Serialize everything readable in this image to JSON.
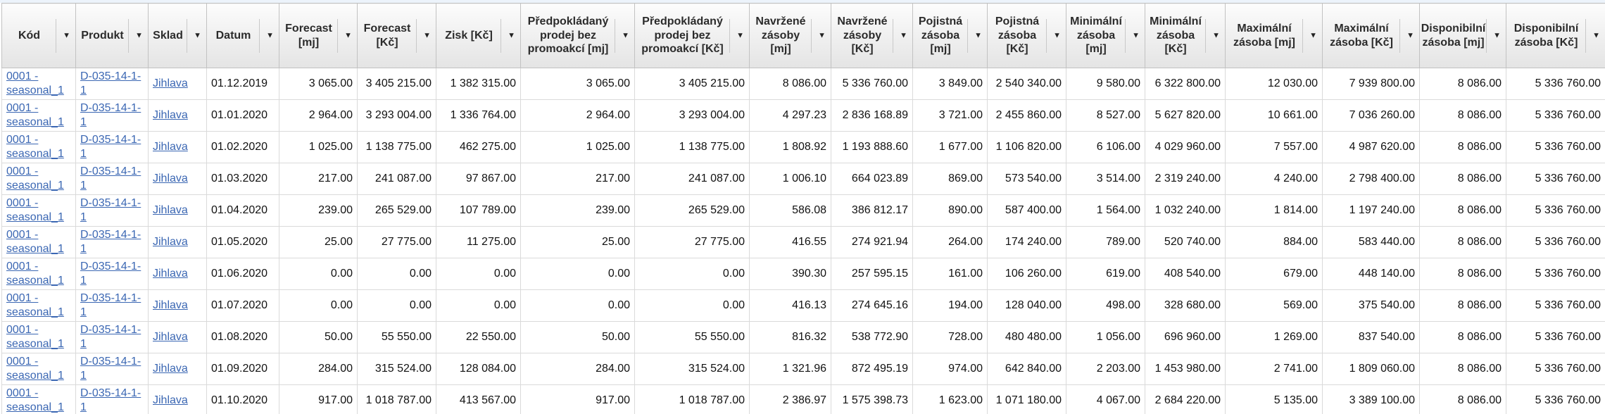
{
  "icons": {
    "filter_dropdown": "▼"
  },
  "colors": {
    "link": "#3b67b3",
    "header_text": "#2b2b2b",
    "top_strip": "#ecf3fb"
  },
  "grid": {
    "columns": [
      {
        "key": "kod",
        "label": "Kód",
        "type": "link"
      },
      {
        "key": "produkt",
        "label": "Produkt",
        "type": "link"
      },
      {
        "key": "sklad",
        "label": "Sklad",
        "type": "link"
      },
      {
        "key": "datum",
        "label": "Datum",
        "type": "text"
      },
      {
        "key": "forecast_mj",
        "label": "Forecast [mj]",
        "type": "number"
      },
      {
        "key": "forecast_kc",
        "label": "Forecast [Kč]",
        "type": "number"
      },
      {
        "key": "zisk_kc",
        "label": "Zisk [Kč]",
        "type": "number"
      },
      {
        "key": "predpokladany_prodej_mj",
        "label": "Předpokládaný prodej bez promoakcí [mj]",
        "type": "number"
      },
      {
        "key": "predpokladany_prodej_kc",
        "label": "Předpokládaný prodej bez promoakcí [Kč]",
        "type": "number"
      },
      {
        "key": "navrzene_zasoby_mj",
        "label": "Navržené zásoby [mj]",
        "type": "number"
      },
      {
        "key": "navrzene_zasoby_kc",
        "label": "Navržené zásoby [Kč]",
        "type": "number"
      },
      {
        "key": "pojistna_zasoba_mj",
        "label": "Pojistná zásoba [mj]",
        "type": "number"
      },
      {
        "key": "pojistna_zasoba_kc",
        "label": "Pojistná zásoba [Kč]",
        "type": "number"
      },
      {
        "key": "minimalni_zasoba_mj",
        "label": "Minimální zásoba [mj]",
        "type": "number"
      },
      {
        "key": "minimalni_zasoba_kc",
        "label": "Minimální zásoba [Kč]",
        "type": "number"
      },
      {
        "key": "maximalni_zasoba_mj",
        "label": "Maximální zásoba [mj]",
        "type": "number"
      },
      {
        "key": "maximalni_zasoba_kc",
        "label": "Maximální zásoba [Kč]",
        "type": "number"
      },
      {
        "key": "disponibilni_zasoba_mj",
        "label": "Disponibilní zásoba [mj]",
        "type": "number"
      },
      {
        "key": "disponibilni_zasoba_kc",
        "label": "Disponibilní zásoba [Kč]",
        "type": "number"
      }
    ],
    "rows": [
      {
        "kod": "0001 - seasonal_1",
        "produkt": "D-035-14-1-1",
        "sklad": "Jihlava",
        "datum": "01.12.2019",
        "forecast_mj": "3 065.00",
        "forecast_kc": "3 405 215.00",
        "zisk_kc": "1 382 315.00",
        "predpokladany_prodej_mj": "3 065.00",
        "predpokladany_prodej_kc": "3 405 215.00",
        "navrzene_zasoby_mj": "8 086.00",
        "navrzene_zasoby_kc": "5 336 760.00",
        "pojistna_zasoba_mj": "3 849.00",
        "pojistna_zasoba_kc": "2 540 340.00",
        "minimalni_zasoba_mj": "9 580.00",
        "minimalni_zasoba_kc": "6 322 800.00",
        "maximalni_zasoba_mj": "12 030.00",
        "maximalni_zasoba_kc": "7 939 800.00",
        "disponibilni_zasoba_mj": "8 086.00",
        "disponibilni_zasoba_kc": "5 336 760.00"
      },
      {
        "kod": "0001 - seasonal_1",
        "produkt": "D-035-14-1-1",
        "sklad": "Jihlava",
        "datum": "01.01.2020",
        "forecast_mj": "2 964.00",
        "forecast_kc": "3 293 004.00",
        "zisk_kc": "1 336 764.00",
        "predpokladany_prodej_mj": "2 964.00",
        "predpokladany_prodej_kc": "3 293 004.00",
        "navrzene_zasoby_mj": "4 297.23",
        "navrzene_zasoby_kc": "2 836 168.89",
        "pojistna_zasoba_mj": "3 721.00",
        "pojistna_zasoba_kc": "2 455 860.00",
        "minimalni_zasoba_mj": "8 527.00",
        "minimalni_zasoba_kc": "5 627 820.00",
        "maximalni_zasoba_mj": "10 661.00",
        "maximalni_zasoba_kc": "7 036 260.00",
        "disponibilni_zasoba_mj": "8 086.00",
        "disponibilni_zasoba_kc": "5 336 760.00"
      },
      {
        "kod": "0001 - seasonal_1",
        "produkt": "D-035-14-1-1",
        "sklad": "Jihlava",
        "datum": "01.02.2020",
        "forecast_mj": "1 025.00",
        "forecast_kc": "1 138 775.00",
        "zisk_kc": "462 275.00",
        "predpokladany_prodej_mj": "1 025.00",
        "predpokladany_prodej_kc": "1 138 775.00",
        "navrzene_zasoby_mj": "1 808.92",
        "navrzene_zasoby_kc": "1 193 888.60",
        "pojistna_zasoba_mj": "1 677.00",
        "pojistna_zasoba_kc": "1 106 820.00",
        "minimalni_zasoba_mj": "6 106.00",
        "minimalni_zasoba_kc": "4 029 960.00",
        "maximalni_zasoba_mj": "7 557.00",
        "maximalni_zasoba_kc": "4 987 620.00",
        "disponibilni_zasoba_mj": "8 086.00",
        "disponibilni_zasoba_kc": "5 336 760.00"
      },
      {
        "kod": "0001 - seasonal_1",
        "produkt": "D-035-14-1-1",
        "sklad": "Jihlava",
        "datum": "01.03.2020",
        "forecast_mj": "217.00",
        "forecast_kc": "241 087.00",
        "zisk_kc": "97 867.00",
        "predpokladany_prodej_mj": "217.00",
        "predpokladany_prodej_kc": "241 087.00",
        "navrzene_zasoby_mj": "1 006.10",
        "navrzene_zasoby_kc": "664 023.89",
        "pojistna_zasoba_mj": "869.00",
        "pojistna_zasoba_kc": "573 540.00",
        "minimalni_zasoba_mj": "3 514.00",
        "minimalni_zasoba_kc": "2 319 240.00",
        "maximalni_zasoba_mj": "4 240.00",
        "maximalni_zasoba_kc": "2 798 400.00",
        "disponibilni_zasoba_mj": "8 086.00",
        "disponibilni_zasoba_kc": "5 336 760.00"
      },
      {
        "kod": "0001 - seasonal_1",
        "produkt": "D-035-14-1-1",
        "sklad": "Jihlava",
        "datum": "01.04.2020",
        "forecast_mj": "239.00",
        "forecast_kc": "265 529.00",
        "zisk_kc": "107 789.00",
        "predpokladany_prodej_mj": "239.00",
        "predpokladany_prodej_kc": "265 529.00",
        "navrzene_zasoby_mj": "586.08",
        "navrzene_zasoby_kc": "386 812.17",
        "pojistna_zasoba_mj": "890.00",
        "pojistna_zasoba_kc": "587 400.00",
        "minimalni_zasoba_mj": "1 564.00",
        "minimalni_zasoba_kc": "1 032 240.00",
        "maximalni_zasoba_mj": "1 814.00",
        "maximalni_zasoba_kc": "1 197 240.00",
        "disponibilni_zasoba_mj": "8 086.00",
        "disponibilni_zasoba_kc": "5 336 760.00"
      },
      {
        "kod": "0001 - seasonal_1",
        "produkt": "D-035-14-1-1",
        "sklad": "Jihlava",
        "datum": "01.05.2020",
        "forecast_mj": "25.00",
        "forecast_kc": "27 775.00",
        "zisk_kc": "11 275.00",
        "predpokladany_prodej_mj": "25.00",
        "predpokladany_prodej_kc": "27 775.00",
        "navrzene_zasoby_mj": "416.55",
        "navrzene_zasoby_kc": "274 921.94",
        "pojistna_zasoba_mj": "264.00",
        "pojistna_zasoba_kc": "174 240.00",
        "minimalni_zasoba_mj": "789.00",
        "minimalni_zasoba_kc": "520 740.00",
        "maximalni_zasoba_mj": "884.00",
        "maximalni_zasoba_kc": "583 440.00",
        "disponibilni_zasoba_mj": "8 086.00",
        "disponibilni_zasoba_kc": "5 336 760.00"
      },
      {
        "kod": "0001 - seasonal_1",
        "produkt": "D-035-14-1-1",
        "sklad": "Jihlava",
        "datum": "01.06.2020",
        "forecast_mj": "0.00",
        "forecast_kc": "0.00",
        "zisk_kc": "0.00",
        "predpokladany_prodej_mj": "0.00",
        "predpokladany_prodej_kc": "0.00",
        "navrzene_zasoby_mj": "390.30",
        "navrzene_zasoby_kc": "257 595.15",
        "pojistna_zasoba_mj": "161.00",
        "pojistna_zasoba_kc": "106 260.00",
        "minimalni_zasoba_mj": "619.00",
        "minimalni_zasoba_kc": "408 540.00",
        "maximalni_zasoba_mj": "679.00",
        "maximalni_zasoba_kc": "448 140.00",
        "disponibilni_zasoba_mj": "8 086.00",
        "disponibilni_zasoba_kc": "5 336 760.00"
      },
      {
        "kod": "0001 - seasonal_1",
        "produkt": "D-035-14-1-1",
        "sklad": "Jihlava",
        "datum": "01.07.2020",
        "forecast_mj": "0.00",
        "forecast_kc": "0.00",
        "zisk_kc": "0.00",
        "predpokladany_prodej_mj": "0.00",
        "predpokladany_prodej_kc": "0.00",
        "navrzene_zasoby_mj": "416.13",
        "navrzene_zasoby_kc": "274 645.16",
        "pojistna_zasoba_mj": "194.00",
        "pojistna_zasoba_kc": "128 040.00",
        "minimalni_zasoba_mj": "498.00",
        "minimalni_zasoba_kc": "328 680.00",
        "maximalni_zasoba_mj": "569.00",
        "maximalni_zasoba_kc": "375 540.00",
        "disponibilni_zasoba_mj": "8 086.00",
        "disponibilni_zasoba_kc": "5 336 760.00"
      },
      {
        "kod": "0001 - seasonal_1",
        "produkt": "D-035-14-1-1",
        "sklad": "Jihlava",
        "datum": "01.08.2020",
        "forecast_mj": "50.00",
        "forecast_kc": "55 550.00",
        "zisk_kc": "22 550.00",
        "predpokladany_prodej_mj": "50.00",
        "predpokladany_prodej_kc": "55 550.00",
        "navrzene_zasoby_mj": "816.32",
        "navrzene_zasoby_kc": "538 772.90",
        "pojistna_zasoba_mj": "728.00",
        "pojistna_zasoba_kc": "480 480.00",
        "minimalni_zasoba_mj": "1 056.00",
        "minimalni_zasoba_kc": "696 960.00",
        "maximalni_zasoba_mj": "1 269.00",
        "maximalni_zasoba_kc": "837 540.00",
        "disponibilni_zasoba_mj": "8 086.00",
        "disponibilni_zasoba_kc": "5 336 760.00"
      },
      {
        "kod": "0001 - seasonal_1",
        "produkt": "D-035-14-1-1",
        "sklad": "Jihlava",
        "datum": "01.09.2020",
        "forecast_mj": "284.00",
        "forecast_kc": "315 524.00",
        "zisk_kc": "128 084.00",
        "predpokladany_prodej_mj": "284.00",
        "predpokladany_prodej_kc": "315 524.00",
        "navrzene_zasoby_mj": "1 321.96",
        "navrzene_zasoby_kc": "872 495.19",
        "pojistna_zasoba_mj": "974.00",
        "pojistna_zasoba_kc": "642 840.00",
        "minimalni_zasoba_mj": "2 203.00",
        "minimalni_zasoba_kc": "1 453 980.00",
        "maximalni_zasoba_mj": "2 741.00",
        "maximalni_zasoba_kc": "1 809 060.00",
        "disponibilni_zasoba_mj": "8 086.00",
        "disponibilni_zasoba_kc": "5 336 760.00"
      },
      {
        "kod": "0001 - seasonal_1",
        "produkt": "D-035-14-1-1",
        "sklad": "Jihlava",
        "datum": "01.10.2020",
        "forecast_mj": "917.00",
        "forecast_kc": "1 018 787.00",
        "zisk_kc": "413 567.00",
        "predpokladany_prodej_mj": "917.00",
        "predpokladany_prodej_kc": "1 018 787.00",
        "navrzene_zasoby_mj": "2 386.97",
        "navrzene_zasoby_kc": "1 575 398.73",
        "pojistna_zasoba_mj": "1 623.00",
        "pojistna_zasoba_kc": "1 071 180.00",
        "minimalni_zasoba_mj": "4 067.00",
        "minimalni_zasoba_kc": "2 684 220.00",
        "maximalni_zasoba_mj": "5 135.00",
        "maximalni_zasoba_kc": "3 389 100.00",
        "disponibilni_zasoba_mj": "8 086.00",
        "disponibilni_zasoba_kc": "5 336 760.00"
      }
    ]
  }
}
